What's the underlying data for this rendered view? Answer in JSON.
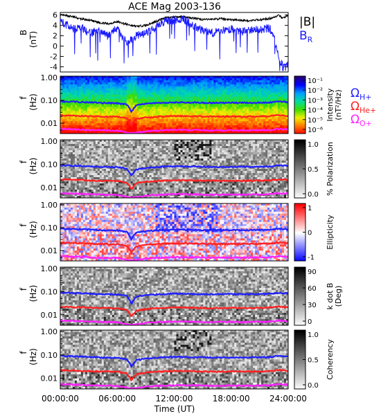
{
  "title": "ACE Mag 2003-136",
  "colors": {
    "bmag": "#000000",
    "br": "#1a1aff",
    "omega_h": "#1f1fff",
    "omega_he": "#ff2020",
    "omega_o": "#ff20ff"
  },
  "legend": {
    "bmag": "|B|",
    "br_main": "B",
    "br_sub": "R"
  },
  "omega_labels": {
    "h": {
      "main": "Ω",
      "sub": "H+"
    },
    "he": {
      "main": "Ω",
      "sub": "He+"
    },
    "o": {
      "main": "Ω",
      "sub": "O+"
    }
  },
  "xaxis": {
    "label": "Time (UT)",
    "ticks": [
      "00:00:00",
      "06:00:00",
      "12:00:00",
      "18:00:00",
      "24:00:00"
    ]
  },
  "chart_data": [
    {
      "type": "line",
      "panel": "field",
      "ylabel": "B",
      "yunit": "(nT)",
      "ylim": [
        -5,
        6.5
      ],
      "yticks": [
        "6",
        "4",
        "2",
        "0",
        "-2",
        "-4"
      ],
      "x_unit": "hours UT",
      "series": [
        {
          "name": "|B|",
          "x": [
            0,
            0.5,
            1,
            1.5,
            2,
            3,
            4,
            5,
            6,
            7,
            8,
            9,
            10,
            11,
            12,
            13,
            14,
            15,
            16,
            17,
            18,
            19,
            20,
            21,
            22,
            22.5,
            23,
            23.5,
            24
          ],
          "values": [
            6.0,
            5.9,
            5.8,
            5.6,
            5.3,
            5.0,
            4.6,
            4.3,
            4.7,
            4.2,
            3.8,
            4.0,
            4.7,
            5.5,
            5.6,
            5.7,
            5.4,
            5.1,
            5.2,
            5.3,
            5.1,
            5.0,
            4.9,
            5.1,
            5.3,
            5.6,
            5.9,
            5.4,
            6.0
          ]
        },
        {
          "name": "BR",
          "x": [
            0,
            0.5,
            1,
            1.5,
            2,
            3,
            4,
            5,
            6,
            7,
            8,
            9,
            10,
            11,
            12,
            13,
            14,
            15,
            16,
            17,
            18,
            19,
            20,
            21,
            22,
            22.5,
            23,
            23.5,
            24
          ],
          "values": [
            5.0,
            4.2,
            3.8,
            3.2,
            3.8,
            2.5,
            3.0,
            2.0,
            3.5,
            0.5,
            2.0,
            2.5,
            3.5,
            4.8,
            5.0,
            5.2,
            4.0,
            3.0,
            2.5,
            3.0,
            3.2,
            2.8,
            3.0,
            3.2,
            3.5,
            2.0,
            -2.5,
            -4.0,
            -3.5
          ]
        }
      ]
    },
    {
      "type": "heatmap",
      "panel": "intensity",
      "ylabel": "f",
      "yunit": "(Hz)",
      "yscale": "log",
      "ylim": [
        0.004,
        1.0
      ],
      "yticks": [
        "1.00",
        "0.10",
        "0.01"
      ],
      "colorbar_label": "Intensity",
      "colorbar_unit": "(nT²/Hz)",
      "colorbar_ticks": [
        "10⁻¹",
        "10⁻²",
        "10⁻³",
        "10⁻⁴",
        "10⁻⁵",
        "10⁻⁶"
      ]
    },
    {
      "type": "heatmap",
      "panel": "polarization",
      "ylabel": "f",
      "yunit": "(Hz)",
      "yscale": "log",
      "ylim": [
        0.004,
        1.0
      ],
      "yticks": [
        "1.00",
        "0.10",
        "0.01"
      ],
      "colorbar_label": "% Polarization",
      "colorbar_ticks": [
        "1.0",
        "0.5",
        "0.0"
      ]
    },
    {
      "type": "heatmap",
      "panel": "ellipticity",
      "ylabel": "f",
      "yunit": "(Hz)",
      "yscale": "log",
      "ylim": [
        0.004,
        1.0
      ],
      "yticks": [
        "1.00",
        "0.10",
        "0.01"
      ],
      "colorbar_label": "Ellipticity",
      "colorbar_ticks": [
        "1",
        "0",
        "-1"
      ]
    },
    {
      "type": "heatmap",
      "panel": "kdotb",
      "ylabel": "f",
      "yunit": "(Hz)",
      "yscale": "log",
      "ylim": [
        0.004,
        1.0
      ],
      "yticks": [
        "1.00",
        "0.10",
        "0.01"
      ],
      "colorbar_label": "k dot B",
      "colorbar_unit": "(Deg)",
      "colorbar_ticks": [
        "90",
        "60",
        "30",
        "0"
      ]
    },
    {
      "type": "heatmap",
      "panel": "coherency",
      "ylabel": "f",
      "yunit": "(Hz)",
      "yscale": "log",
      "ylim": [
        0.004,
        1.0
      ],
      "yticks": [
        "1.00",
        "0.10",
        "0.01"
      ],
      "colorbar_label": "Coherency",
      "colorbar_ticks": [
        "1.0",
        "0.5",
        "0.0"
      ]
    },
    {
      "type": "line",
      "panel": "gyrofrequencies",
      "x_unit": "hours UT",
      "y_unit": "Hz",
      "series": [
        {
          "name": "ΩH+",
          "x": [
            0,
            2,
            4,
            6,
            7,
            7.5,
            8,
            9,
            10,
            12,
            14,
            16,
            18,
            20,
            22,
            23,
            24
          ],
          "values": [
            0.09,
            0.085,
            0.078,
            0.075,
            0.065,
            0.03,
            0.06,
            0.07,
            0.075,
            0.082,
            0.08,
            0.077,
            0.078,
            0.078,
            0.08,
            0.09,
            0.085
          ]
        },
        {
          "name": "ΩHe+",
          "x": [
            0,
            2,
            4,
            6,
            7,
            7.5,
            8,
            9,
            10,
            12,
            14,
            16,
            18,
            20,
            22,
            23,
            24
          ],
          "values": [
            0.022,
            0.021,
            0.0195,
            0.019,
            0.016,
            0.008,
            0.015,
            0.0175,
            0.019,
            0.0205,
            0.02,
            0.0193,
            0.0195,
            0.0195,
            0.02,
            0.0225,
            0.021
          ]
        },
        {
          "name": "ΩO+",
          "x": [
            0,
            2,
            4,
            6,
            7,
            7.5,
            8,
            9,
            10,
            12,
            14,
            16,
            18,
            20,
            22,
            23,
            24
          ],
          "values": [
            0.0056,
            0.0053,
            0.0049,
            0.0047,
            0.004,
            0.002,
            0.0038,
            0.0044,
            0.0047,
            0.0051,
            0.005,
            0.0048,
            0.0049,
            0.0049,
            0.005,
            0.0056,
            0.0053
          ]
        }
      ]
    }
  ]
}
